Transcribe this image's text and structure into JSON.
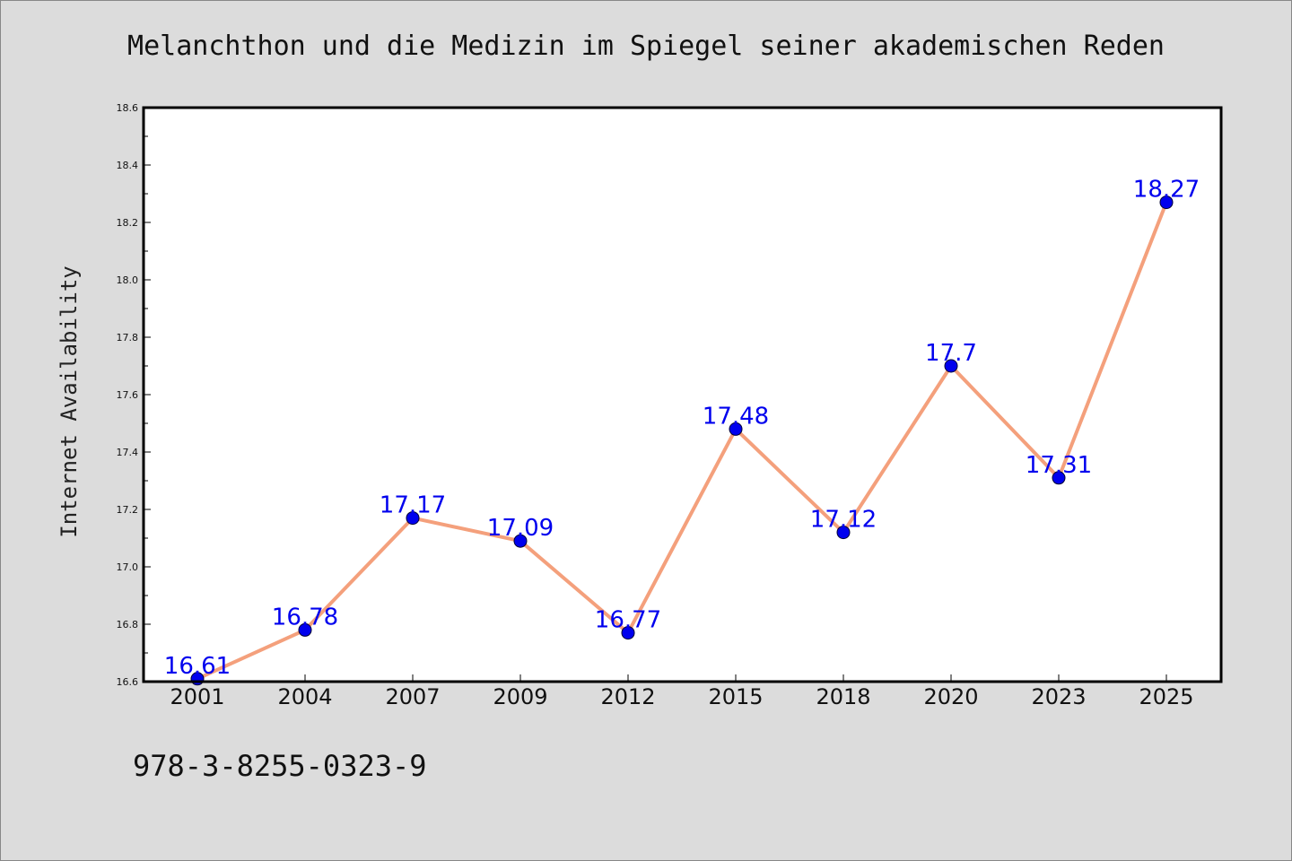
{
  "chart_data": {
    "type": "line",
    "title": "Melanchthon und die Medizin im Spiegel seiner akademischen Reden",
    "xlabel": "",
    "ylabel": "Internet Availability",
    "categories": [
      "2001",
      "2004",
      "2007",
      "2009",
      "2012",
      "2015",
      "2018",
      "2020",
      "2023",
      "2025"
    ],
    "series": [
      {
        "values": [
          16.61,
          16.78,
          17.17,
          17.09,
          16.77,
          17.48,
          17.12,
          17.7,
          17.31,
          18.27
        ],
        "data_labels": [
          "16.61",
          "16.78",
          "17.17",
          "17.09",
          "16.77",
          "17.48",
          "17.12",
          "17.7",
          "17.31",
          "18.27"
        ],
        "line_color": "#f4a07c",
        "marker_color": "#0000ee",
        "label_color": "#0000ee"
      }
    ],
    "ylim": [
      16.6,
      18.6
    ],
    "yticks": [
      "16.6",
      "16.8",
      "17.0",
      "17.2",
      "17.4",
      "17.6",
      "17.8",
      "18.0",
      "18.2",
      "18.4",
      "18.6"
    ],
    "grid": false,
    "legend": "none"
  },
  "footer_code": "978-3-8255-0323-9",
  "colors": {
    "background": "#dcdcdc",
    "plot_background": "#ffffff",
    "line": "#f4a07c",
    "marker": "#0000ee"
  }
}
